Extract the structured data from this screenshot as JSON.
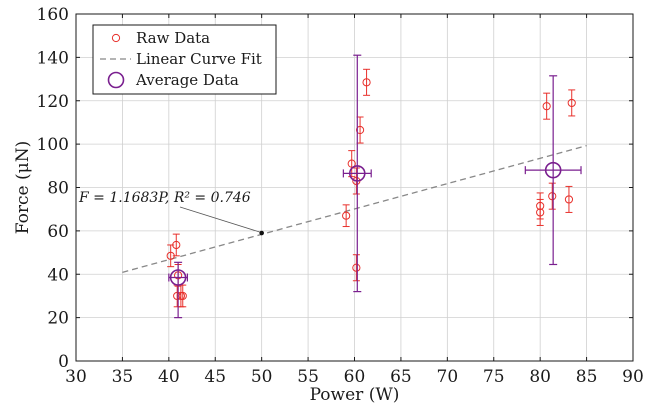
{
  "chart_data": {
    "type": "scatter",
    "title": "",
    "xlabel": "Power (W)",
    "ylabel": "Force (μN)",
    "xlim": [
      30,
      90
    ],
    "ylim": [
      0,
      160
    ],
    "xticks": [
      30,
      35,
      40,
      45,
      50,
      55,
      60,
      65,
      70,
      75,
      80,
      85,
      90
    ],
    "yticks": [
      0,
      20,
      40,
      60,
      80,
      100,
      120,
      140,
      160
    ],
    "grid": true,
    "legend_position": "top-left",
    "series": [
      {
        "name": "Raw Data",
        "kind": "scatter",
        "marker": "small-circle",
        "color": "#e8302b",
        "points": [
          {
            "x": 40.2,
            "y": 48.5,
            "err": 5
          },
          {
            "x": 40.8,
            "y": 53.5,
            "err": 5
          },
          {
            "x": 41.0,
            "y": 39.5,
            "err": 5
          },
          {
            "x": 40.9,
            "y": 30.0,
            "err": 5
          },
          {
            "x": 41.3,
            "y": 30.0,
            "err": 5
          },
          {
            "x": 41.5,
            "y": 30.0,
            "err": 5
          },
          {
            "x": 59.1,
            "y": 67.0,
            "err": 5
          },
          {
            "x": 59.7,
            "y": 91.0,
            "err": 6
          },
          {
            "x": 60.2,
            "y": 83.0,
            "err": 6
          },
          {
            "x": 60.2,
            "y": 43.0,
            "err": 6
          },
          {
            "x": 60.6,
            "y": 106.5,
            "err": 6
          },
          {
            "x": 61.3,
            "y": 128.5,
            "err": 6
          },
          {
            "x": 80.0,
            "y": 68.5,
            "err": 6
          },
          {
            "x": 80.0,
            "y": 71.5,
            "err": 6
          },
          {
            "x": 80.7,
            "y": 117.5,
            "err": 6
          },
          {
            "x": 81.3,
            "y": 76.0,
            "err": 6
          },
          {
            "x": 83.1,
            "y": 74.5,
            "err": 6
          },
          {
            "x": 83.4,
            "y": 119.0,
            "err": 6
          }
        ]
      },
      {
        "name": "Linear Curve Fit",
        "kind": "line",
        "dash": true,
        "color": "#888888",
        "slope": 1.1683,
        "x": [
          35,
          85
        ]
      },
      {
        "name": "Average Data",
        "kind": "scatter",
        "marker": "large-circle",
        "color": "#7a1f8f",
        "points": [
          {
            "x": 41.0,
            "y": 38.5,
            "yerr_low": 18.5,
            "yerr_high": 7,
            "xerr": 1
          },
          {
            "x": 60.3,
            "y": 86.5,
            "yerr_low": 54.5,
            "yerr_high": 54.5,
            "xerr": 1.5
          },
          {
            "x": 81.4,
            "y": 88.0,
            "yerr_low": 43.5,
            "yerr_high": 43.5,
            "xerr": 3
          }
        ]
      }
    ],
    "annotation": {
      "text": "F = 1.1683P, R² = 0.746",
      "point": {
        "x": 50,
        "y": 59
      }
    }
  }
}
